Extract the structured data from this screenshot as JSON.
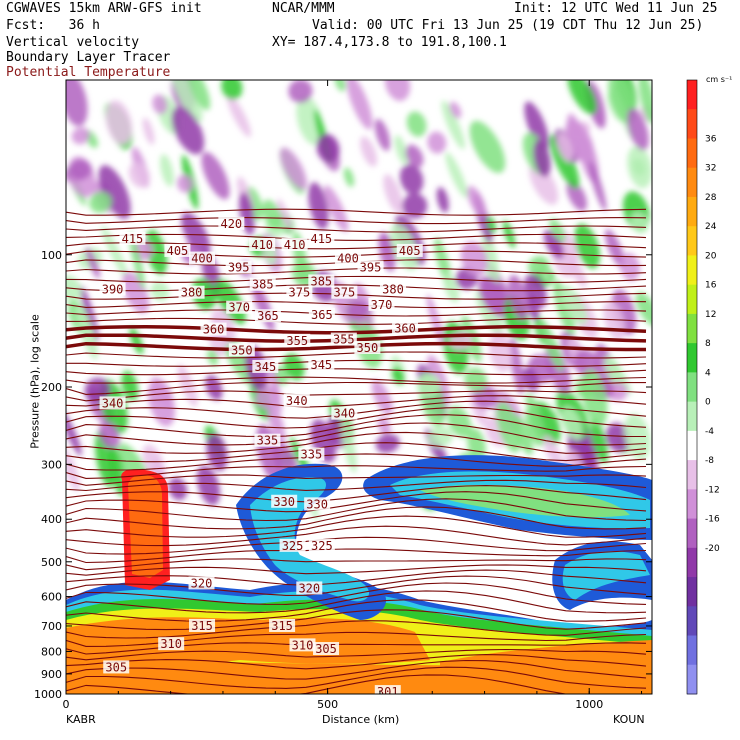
{
  "header": {
    "model": "CGWAVES 15km ARW-GFS init",
    "org": "NCAR/MMM",
    "init": "Init: 12 UTC Wed 11 Jun 25",
    "fcst": "Fcst:   36 h",
    "valid": "Valid: 00 UTC Fri 13 Jun 25 (19 CDT Thu 12 Jun 25)",
    "field1": "Vertical velocity",
    "field2": "Boundary Layer Tracer",
    "field3": "Potential Temperature",
    "xy": "XY= 187.4,173.8 to 191.8,100.1"
  },
  "colors": {
    "theta_line": "#7b0a0a",
    "title_red": "#8b1a1a"
  },
  "chart_data": {
    "type": "heatmap",
    "xlabel": "Distance (km)",
    "ylabel": "Pressure (hPa), log scale",
    "x_ticks": [
      0,
      500,
      1000
    ],
    "xlim": [
      0,
      1120
    ],
    "y_ticks": [
      100,
      200,
      300,
      400,
      500,
      600,
      700,
      800,
      900,
      1000
    ],
    "ylim": [
      1000,
      40
    ],
    "y_scale": "log",
    "left_station": "KABR",
    "right_station": "KOUN",
    "colorbar": {
      "unit": "cm s⁻¹",
      "labels": [
        36,
        32,
        28,
        24,
        20,
        16,
        12,
        8,
        4,
        0,
        -4,
        -8,
        -12,
        -16,
        -20
      ],
      "colors": [
        "#ff2020",
        "#ff4a18",
        "#ff6a10",
        "#ff8a10",
        "#ffaa10",
        "#ffc818",
        "#f0f018",
        "#c0f018",
        "#80e040",
        "#30c830",
        "#80e080",
        "#b8f0b8",
        "#ffffff",
        "#e8c0e8",
        "#d090d8",
        "#b060c0",
        "#9038a8",
        "#7030a0",
        "#6048b8",
        "#7070e0",
        "#9090f0"
      ]
    },
    "theta_labels": [
      {
        "label": "420",
        "x": 316,
        "p": 85
      },
      {
        "label": "415",
        "x": 127,
        "p": 92
      },
      {
        "label": "415",
        "x": 488,
        "p": 92
      },
      {
        "label": "410",
        "x": 375,
        "p": 95
      },
      {
        "label": "410",
        "x": 437,
        "p": 95
      },
      {
        "label": "405",
        "x": 213,
        "p": 98
      },
      {
        "label": "405",
        "x": 657,
        "p": 98
      },
      {
        "label": "400",
        "x": 260,
        "p": 102
      },
      {
        "label": "400",
        "x": 539,
        "p": 102
      },
      {
        "label": "395",
        "x": 330,
        "p": 107
      },
      {
        "label": "395",
        "x": 582,
        "p": 107
      },
      {
        "label": "390",
        "x": 89,
        "p": 120
      },
      {
        "label": "385",
        "x": 376,
        "p": 117
      },
      {
        "label": "385",
        "x": 488,
        "p": 115
      },
      {
        "label": "380",
        "x": 240,
        "p": 122
      },
      {
        "label": "380",
        "x": 625,
        "p": 120
      },
      {
        "label": "375",
        "x": 446,
        "p": 122
      },
      {
        "label": "375",
        "x": 532,
        "p": 122
      },
      {
        "label": "370",
        "x": 331,
        "p": 132
      },
      {
        "label": "370",
        "x": 603,
        "p": 130
      },
      {
        "label": "365",
        "x": 386,
        "p": 138
      },
      {
        "label": "365",
        "x": 489,
        "p": 137
      },
      {
        "label": "360",
        "x": 282,
        "p": 148
      },
      {
        "label": "360",
        "x": 648,
        "p": 147
      },
      {
        "label": "355",
        "x": 442,
        "p": 157
      },
      {
        "label": "355",
        "x": 531,
        "p": 156
      },
      {
        "label": "350",
        "x": 336,
        "p": 165
      },
      {
        "label": "350",
        "x": 576,
        "p": 163
      },
      {
        "label": "345",
        "x": 381,
        "p": 180
      },
      {
        "label": "345",
        "x": 488,
        "p": 178
      },
      {
        "label": "340",
        "x": 89,
        "p": 218
      },
      {
        "label": "340",
        "x": 441,
        "p": 215
      },
      {
        "label": "340",
        "x": 532,
        "p": 230
      },
      {
        "label": "335",
        "x": 385,
        "p": 265
      },
      {
        "label": "335",
        "x": 469,
        "p": 285
      },
      {
        "label": "330",
        "x": 417,
        "p": 365
      },
      {
        "label": "330",
        "x": 480,
        "p": 370
      },
      {
        "label": "325",
        "x": 433,
        "p": 460
      },
      {
        "label": "325",
        "x": 489,
        "p": 460
      },
      {
        "label": "320",
        "x": 259,
        "p": 560
      },
      {
        "label": "320",
        "x": 465,
        "p": 575
      },
      {
        "label": "315",
        "x": 260,
        "p": 700
      },
      {
        "label": "315",
        "x": 413,
        "p": 700
      },
      {
        "label": "310",
        "x": 201,
        "p": 770
      },
      {
        "label": "310",
        "x": 452,
        "p": 775
      },
      {
        "label": "305",
        "x": 96,
        "p": 870
      },
      {
        "label": "305",
        "x": 497,
        "p": 790
      },
      {
        "label": "301",
        "x": 615,
        "p": 990
      }
    ]
  }
}
